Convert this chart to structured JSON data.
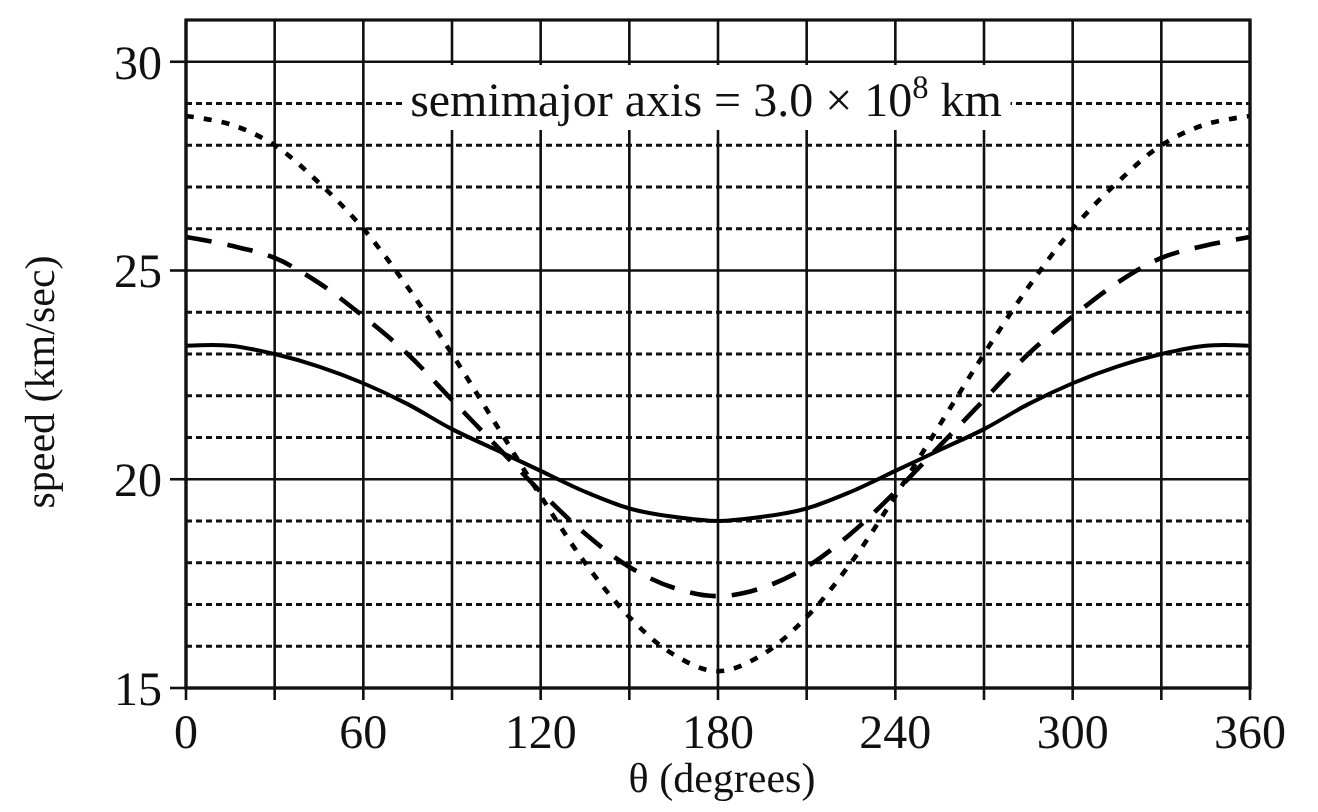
{
  "chart_data": {
    "type": "line",
    "xlabel": "θ (degrees)",
    "ylabel": "speed (km/sec)",
    "annotations": [
      "semimajor axis = 3.0 × 10$^{8}$ km"
    ],
    "x": [
      0,
      15,
      30,
      45,
      60,
      75,
      90,
      105,
      120,
      135,
      150,
      165,
      180,
      195,
      210,
      225,
      240,
      255,
      270,
      285,
      300,
      315,
      330,
      345,
      360
    ],
    "series": [
      {
        "color": "#000000",
        "line_style": "solid",
        "values": [
          23.2,
          23.2,
          23.0,
          22.7,
          22.3,
          21.8,
          21.2,
          20.7,
          20.2,
          19.7,
          19.3,
          19.1,
          19.0,
          19.1,
          19.3,
          19.7,
          20.2,
          20.7,
          21.2,
          21.8,
          22.3,
          22.7,
          23.0,
          23.2,
          23.2
        ]
      },
      {
        "color": "#000000",
        "line_style": "dashed",
        "values": [
          25.8,
          25.6,
          25.3,
          24.7,
          23.9,
          23.0,
          21.9,
          20.8,
          19.7,
          18.7,
          17.9,
          17.4,
          17.2,
          17.4,
          17.9,
          18.7,
          19.7,
          20.8,
          21.9,
          23.0,
          23.9,
          24.7,
          25.3,
          25.6,
          25.8
        ]
      },
      {
        "color": "#000000",
        "line_style": "dotted",
        "values": [
          28.7,
          28.5,
          28.0,
          27.1,
          26.0,
          24.6,
          23.0,
          21.3,
          19.6,
          18.0,
          16.7,
          15.8,
          15.4,
          15.8,
          16.7,
          18.0,
          19.6,
          21.3,
          23.0,
          24.6,
          26.0,
          27.1,
          28.0,
          28.5,
          28.7
        ]
      }
    ],
    "xlim": [
      0,
      360
    ],
    "ylim": [
      15,
      31
    ],
    "xticks": [
      0,
      {
        "value": 30,
        "label": null
      },
      60,
      {
        "value": 90,
        "label": null
      },
      120,
      {
        "value": 150,
        "label": null
      },
      180,
      {
        "value": 210,
        "label": null
      },
      240,
      {
        "value": 270,
        "label": null
      },
      300,
      {
        "value": 330,
        "label": null
      },
      360
    ],
    "yticks": [
      15,
      {
        "value": 16,
        "label": null
      },
      {
        "value": 17,
        "label": null
      },
      {
        "value": 18,
        "label": null
      },
      {
        "value": 19,
        "label": null
      },
      20,
      {
        "value": 21,
        "label": null
      },
      {
        "value": 22,
        "label": null
      },
      {
        "value": 23,
        "label": null
      },
      {
        "value": 24,
        "label": null
      },
      25,
      {
        "value": 26,
        "label": null
      },
      {
        "value": 27,
        "label": null
      },
      {
        "value": 28,
        "label": null
      },
      {
        "value": 29,
        "label": null
      },
      30
    ],
    "grid": true
  }
}
